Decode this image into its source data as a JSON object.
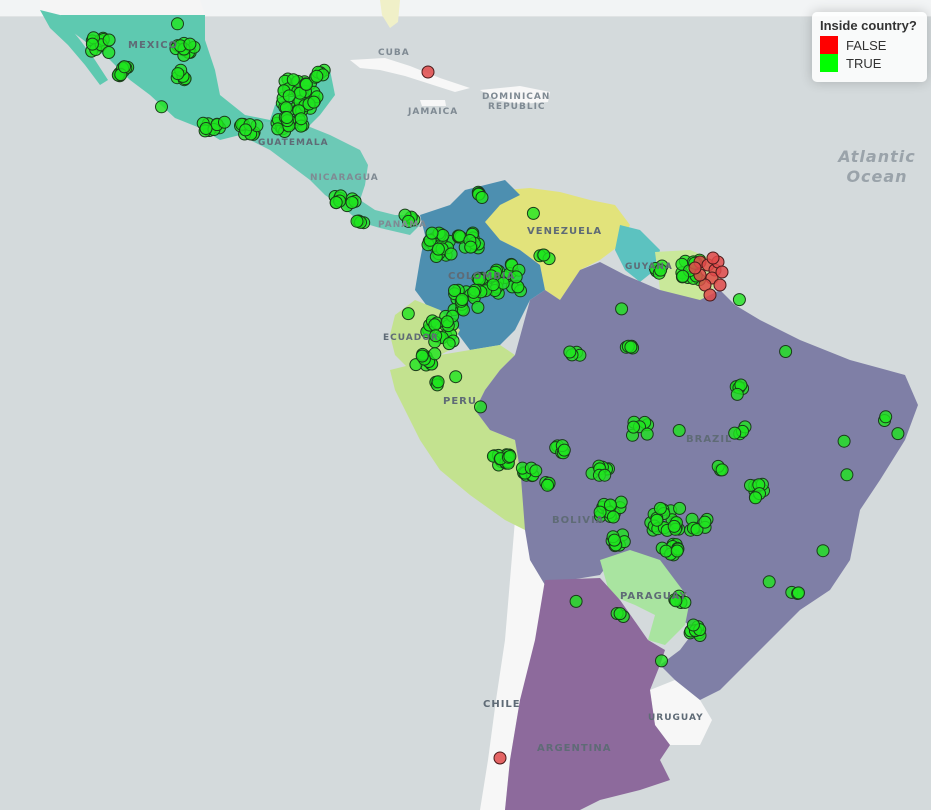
{
  "legend": {
    "title": "Inside country?",
    "items": [
      {
        "label": "FALSE",
        "color": "#ff0000"
      },
      {
        "label": "TRUE",
        "color": "#00ff00"
      }
    ]
  },
  "labels": {
    "mexico": "MEXICO",
    "cuba": "CUBA",
    "jamaica": "JAMAICA",
    "dominican_republic_1": "DOMINICAN",
    "dominican_republic_2": "REPUBLIC",
    "guatemala": "GUATEMALA",
    "nicaragua": "NICARAGUA",
    "panama": "PANAMA",
    "venezuela": "VENEZUELA",
    "guyana": "GUYANA",
    "colombia": "COLOMBIA",
    "ecuador": "ECUADOR",
    "peru": "PERU",
    "brazil": "BRAZIL",
    "bolivia": "BOLIVIA",
    "paraguay": "PARAGUAY",
    "chile": "CHILE",
    "uruguay": "URUGUAY",
    "argentina": "ARGENTINA",
    "ocean_line1": "Atlantic",
    "ocean_line2": "Ocean"
  },
  "colors": {
    "water": "#d4dadc",
    "land_other": "#f5f5f5",
    "mexico": "#5ec9b0",
    "central_america": "#6cc9b6",
    "venezuela": "#e2e37b",
    "colombia": "#4d8fb0",
    "ecuador_peru": "#c3e28f",
    "brazil": "#7f7fa6",
    "bolivia": "#7f7fa6",
    "paraguay": "#a9e4a0",
    "argentina": "#8d6a9c",
    "guyana": "#5cc2c0",
    "suriname": "#c9e89a",
    "point_true": "#1fe51f",
    "point_false": "#e04a4a"
  }
}
